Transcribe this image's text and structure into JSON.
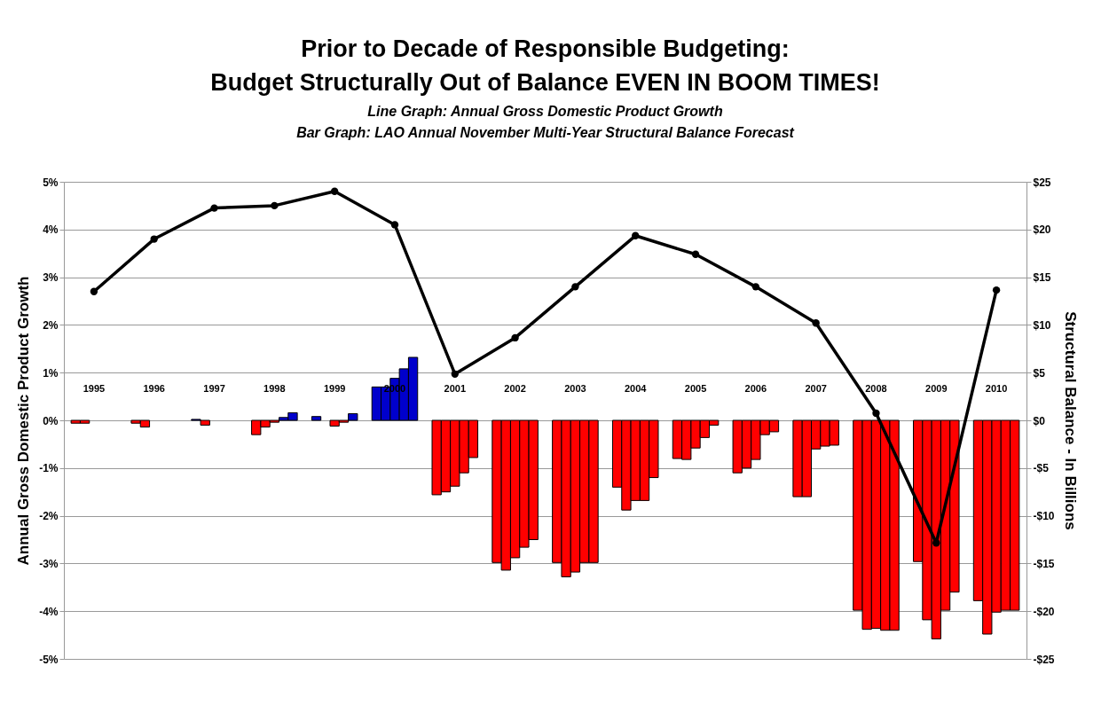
{
  "chart_data": {
    "type": "bar",
    "title": "Prior to Decade of Responsible Budgeting: Budget Structurally Out of Balance EVEN IN BOOM TIMES!",
    "subtitle": "Line Graph: Annual Gross Domestic Product Growth",
    "annotations": [
      "Bar Graph: LAO Annual November Multi-Year Structural Balance Forecast"
    ],
    "ylabel": "Annual Gross Domestic Product Growth",
    "y2label": "Structural Balance - In Billions",
    "categories": [
      "1995",
      "1996",
      "1997",
      "1998",
      "1999",
      "2000",
      "2001",
      "2002",
      "2003",
      "2004",
      "2005",
      "2006",
      "2007",
      "2008",
      "2009",
      "2010"
    ],
    "series": [
      {
        "axis": "y2",
        "colors": [
          "#ff0000",
          "#ff0000",
          "#0000cc",
          "#ff0000",
          "#0000cc",
          "#0000cc",
          "#ff0000",
          "#ff0000",
          "#ff0000",
          "#ff0000",
          "#ff0000",
          "#ff0000",
          "#ff0000",
          "#ff0000",
          "#ff0000",
          "#ff0000"
        ],
        "values": [
          -0.3,
          -0.3,
          0.1,
          -1.5,
          0.4,
          3.5,
          -7.8,
          -14.9,
          -14.9,
          -7.0,
          -4.0,
          -5.5,
          -8.0,
          -19.9,
          -14.8,
          -18.9
        ]
      },
      {
        "axis": "y2",
        "colors": [
          "#ff0000",
          "#ff0000",
          "#ff0000",
          "#ff0000",
          null,
          "#0000cc",
          "#ff0000",
          "#ff0000",
          "#ff0000",
          "#ff0000",
          "#ff0000",
          "#ff0000",
          "#ff0000",
          "#ff0000",
          "#ff0000",
          "#ff0000"
        ],
        "values": [
          -0.3,
          -0.7,
          -0.5,
          -0.7,
          null,
          3.5,
          -7.5,
          -15.7,
          -16.4,
          -9.4,
          -4.1,
          -5.0,
          -8.0,
          -21.9,
          -20.9,
          -22.4
        ]
      },
      {
        "axis": "y2",
        "colors": [
          null,
          null,
          null,
          "#ff0000",
          "#ff0000",
          "#0000cc",
          "#ff0000",
          "#ff0000",
          "#ff0000",
          "#ff0000",
          "#ff0000",
          "#ff0000",
          "#ff0000",
          "#ff0000",
          "#ff0000",
          "#ff0000"
        ],
        "values": [
          null,
          null,
          null,
          -0.2,
          -0.6,
          4.4,
          -6.9,
          -14.4,
          -15.9,
          -8.4,
          -2.9,
          -4.1,
          -3.0,
          -21.8,
          -22.9,
          -20.1
        ]
      },
      {
        "axis": "y2",
        "colors": [
          null,
          null,
          null,
          "#0000cc",
          "#ff0000",
          "#0000cc",
          "#ff0000",
          "#ff0000",
          "#ff0000",
          "#ff0000",
          "#ff0000",
          "#ff0000",
          "#ff0000",
          "#ff0000",
          "#ff0000",
          "#ff0000"
        ],
        "values": [
          null,
          null,
          null,
          0.3,
          -0.2,
          5.4,
          -5.5,
          -13.3,
          -14.9,
          -8.4,
          -1.8,
          -1.5,
          -2.7,
          -22.0,
          -19.9,
          -19.9
        ]
      },
      {
        "axis": "y2",
        "colors": [
          null,
          null,
          null,
          "#0000cc",
          "#0000cc",
          "#0000cc",
          "#ff0000",
          "#ff0000",
          "#ff0000",
          "#ff0000",
          "#ff0000",
          "#ff0000",
          "#ff0000",
          "#ff0000",
          "#ff0000",
          "#ff0000"
        ],
        "values": [
          null,
          null,
          null,
          0.8,
          0.7,
          6.6,
          -3.9,
          -12.5,
          -14.9,
          -6.0,
          -0.5,
          -1.2,
          -2.6,
          -22.0,
          -18.0,
          -19.9
        ]
      },
      {
        "type": "line",
        "color": "#000000",
        "values": [
          2.7,
          3.8,
          4.45,
          4.5,
          4.8,
          4.1,
          0.97,
          1.73,
          2.8,
          3.87,
          3.48,
          2.8,
          2.04,
          0.15,
          -2.57,
          2.73
        ]
      }
    ],
    "ylim": [
      -5,
      5
    ],
    "yticks": [
      {
        "value": 5,
        "label": "5%"
      },
      {
        "value": 4,
        "label": "4%"
      },
      {
        "value": 3,
        "label": "3%"
      },
      {
        "value": 2,
        "label": "2%"
      },
      {
        "value": 1,
        "label": "1%"
      },
      {
        "value": 0,
        "label": "0%"
      },
      {
        "value": -1,
        "label": "-1%"
      },
      {
        "value": -2,
        "label": "-2%"
      },
      {
        "value": -3,
        "label": "-3%"
      },
      {
        "value": -4,
        "label": "-4%"
      },
      {
        "value": -5,
        "label": "-5%"
      }
    ],
    "y2lim": [
      -25,
      25
    ],
    "y2ticks": [
      {
        "value": 25,
        "label": "$25"
      },
      {
        "value": 20,
        "label": "$20"
      },
      {
        "value": 15,
        "label": "$15"
      },
      {
        "value": 10,
        "label": "$10"
      },
      {
        "value": 5,
        "label": "$5"
      },
      {
        "value": 0,
        "label": "$0"
      },
      {
        "value": -5,
        "label": "-$5"
      },
      {
        "value": -10,
        "label": "-$10"
      },
      {
        "value": -15,
        "label": "-$15"
      },
      {
        "value": -20,
        "label": "-$20"
      },
      {
        "value": -25,
        "label": "-$25"
      }
    ],
    "grid": "y",
    "marker": "circle",
    "line_style": "solid"
  }
}
